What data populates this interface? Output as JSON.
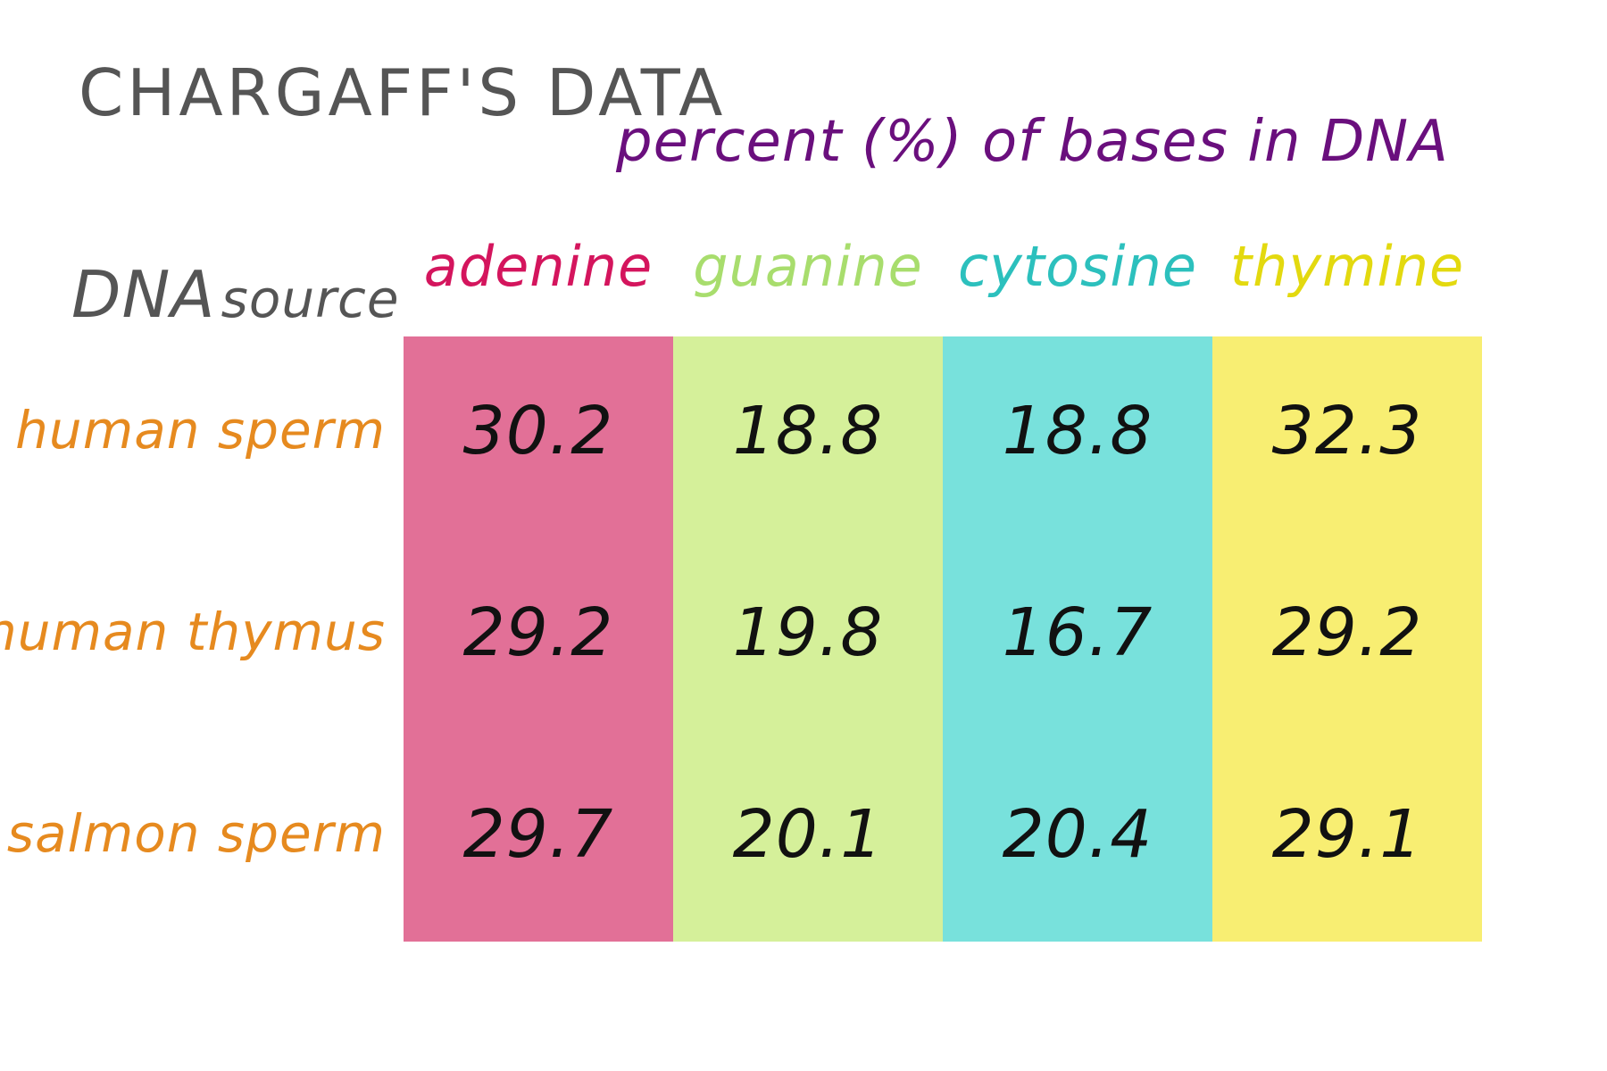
{
  "chart_data": {
    "type": "table",
    "title": "CHARGAFF'S DATA",
    "subtitle": "percent (%) of bases in DNA",
    "row_header": {
      "primary": "DNA",
      "secondary": "source"
    },
    "columns": [
      {
        "name": "adenine",
        "header_color": "#d4155d",
        "fill": "#e27097"
      },
      {
        "name": "guanine",
        "header_color": "#a8dd6d",
        "fill": "#d5f09a"
      },
      {
        "name": "cytosine",
        "header_color": "#2cc0bd",
        "fill": "#78e1dc"
      },
      {
        "name": "thymine",
        "header_color": "#e3d90f",
        "fill": "#f8ee72"
      }
    ],
    "rows": [
      {
        "source": "human sperm",
        "values": [
          "30.2",
          "18.8",
          "18.8",
          "32.3"
        ]
      },
      {
        "source": "human thymus",
        "values": [
          "29.2",
          "19.8",
          "16.7",
          "29.2"
        ]
      },
      {
        "source": "salmon sperm",
        "values": [
          "29.7",
          "20.1",
          "20.4",
          "29.1"
        ]
      }
    ]
  }
}
